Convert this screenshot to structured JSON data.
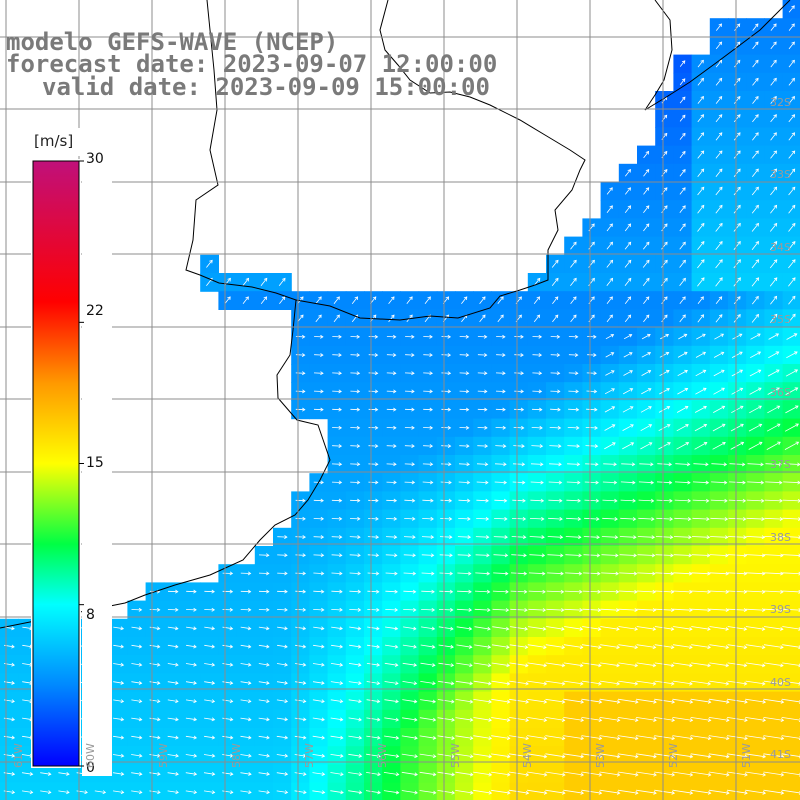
{
  "header": {
    "line1": "modelo GEFS-WAVE (NCEP)",
    "line2": "forecast date: 2023-09-07 12:00:00",
    "line3": "valid date: 2023-09-09 15:00:00"
  },
  "colorbar": {
    "unit": "[m/s]",
    "min": 0,
    "max": 30,
    "ticks": [
      {
        "value": 30,
        "label": "30"
      },
      {
        "value": 22,
        "label": "22"
      },
      {
        "value": 15,
        "label": "15"
      },
      {
        "value": 8,
        "label": "8"
      },
      {
        "value": 0,
        "label": "0"
      }
    ],
    "stops": [
      {
        "value": 0,
        "color": "#0000ff"
      },
      {
        "value": 4,
        "color": "#0088ff"
      },
      {
        "value": 8,
        "color": "#00ffff"
      },
      {
        "value": 11,
        "color": "#00ff44"
      },
      {
        "value": 15,
        "color": "#ffff00"
      },
      {
        "value": 19,
        "color": "#ff9900"
      },
      {
        "value": 23,
        "color": "#ff0000"
      },
      {
        "value": 30,
        "color": "#c0107a"
      }
    ]
  },
  "grid": {
    "lat_labels": [
      "32S",
      "33S",
      "34S",
      "35S",
      "36S",
      "37S",
      "38S",
      "39S",
      "40S",
      "41S"
    ],
    "lon_labels": [
      "61W",
      "60W",
      "59W",
      "58W",
      "57W",
      "56W",
      "55W",
      "54W",
      "53W",
      "52W",
      "51W"
    ]
  },
  "colors": {
    "land": "#ffffff",
    "coast": "#000000",
    "gridline": "#8c8c8c",
    "arrow": "#ffffff"
  },
  "map": {
    "description_units": "wind speed field",
    "field_type": "wind vectors over ocean"
  }
}
